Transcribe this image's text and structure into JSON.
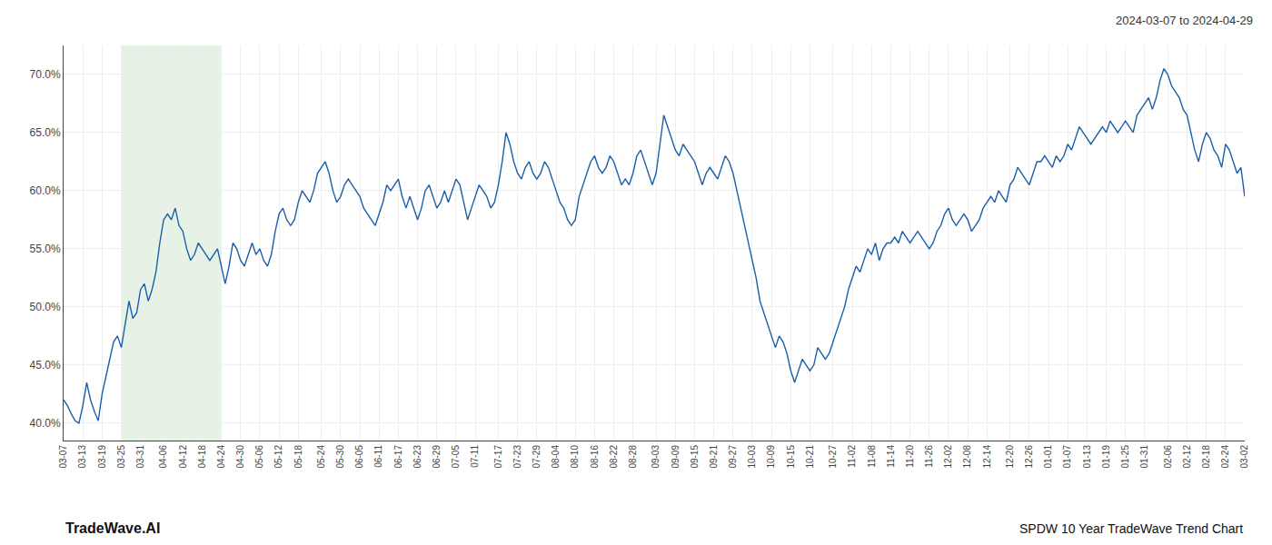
{
  "chart_data": {
    "type": "line",
    "title": "2024-03-07 to 2024-04-29",
    "annotations": [
      "TradeWave.AI",
      "SPDW 10 Year TradeWave Trend Chart"
    ],
    "color": "#1a5fa8",
    "grid": true,
    "ylim": [
      38.5,
      72.5
    ],
    "yticks": [
      {
        "value": 40.0,
        "label": "40.0%"
      },
      {
        "value": 45.0,
        "label": "45.0%"
      },
      {
        "value": 50.0,
        "label": "50.0%"
      },
      {
        "value": 55.0,
        "label": "55.0%"
      },
      {
        "value": 60.0,
        "label": "60.0%"
      },
      {
        "value": 65.0,
        "label": "65.0%"
      },
      {
        "value": 70.0,
        "label": "70.0%"
      }
    ],
    "shaded_range": {
      "start": "03-25",
      "end": "04-24",
      "color": "#d6ead6"
    },
    "categories": [
      "03-07",
      null,
      null,
      null,
      null,
      "03-13",
      null,
      null,
      null,
      null,
      "03-19",
      null,
      null,
      null,
      null,
      "03-25",
      null,
      null,
      null,
      null,
      "03-31",
      null,
      null,
      null,
      null,
      null,
      "04-06",
      null,
      null,
      null,
      null,
      "04-12",
      null,
      null,
      null,
      null,
      "04-18",
      null,
      null,
      null,
      null,
      "04-24",
      null,
      null,
      null,
      null,
      "04-30",
      null,
      null,
      null,
      null,
      "05-06",
      null,
      null,
      null,
      null,
      "05-12",
      null,
      null,
      null,
      null,
      "05-18",
      null,
      null,
      null,
      null,
      null,
      "05-24",
      null,
      null,
      null,
      null,
      "05-30",
      null,
      null,
      null,
      null,
      "06-05",
      null,
      null,
      null,
      null,
      "06-11",
      null,
      null,
      null,
      null,
      "06-17",
      null,
      null,
      null,
      null,
      "06-23",
      null,
      null,
      null,
      null,
      "06-29",
      null,
      null,
      null,
      null,
      "07-05",
      null,
      null,
      null,
      null,
      "07-11",
      null,
      null,
      null,
      null,
      null,
      "07-17",
      null,
      null,
      null,
      null,
      "07-23",
      null,
      null,
      null,
      null,
      "07-29",
      null,
      null,
      null,
      null,
      "08-04",
      null,
      null,
      null,
      null,
      "08-10",
      null,
      null,
      null,
      null,
      "08-16",
      null,
      null,
      null,
      null,
      "08-22",
      null,
      null,
      null,
      null,
      "08-28",
      null,
      null,
      null,
      null,
      null,
      "09-03",
      null,
      null,
      null,
      null,
      "09-09",
      null,
      null,
      null,
      null,
      "09-15",
      null,
      null,
      null,
      null,
      "09-21",
      null,
      null,
      null,
      null,
      "09-27",
      null,
      null,
      null,
      null,
      "10-03",
      null,
      null,
      null,
      null,
      "10-09",
      null,
      null,
      null,
      null,
      "10-15",
      null,
      null,
      null,
      null,
      "10-21",
      null,
      null,
      null,
      null,
      null,
      "10-27",
      null,
      null,
      null,
      null,
      "11-02",
      null,
      null,
      null,
      null,
      "11-08",
      null,
      null,
      null,
      null,
      "11-14",
      null,
      null,
      null,
      null,
      "11-20",
      null,
      null,
      null,
      null,
      "11-26",
      null,
      null,
      null,
      null,
      "12-02",
      null,
      null,
      null,
      null,
      "12-08",
      null,
      null,
      null,
      null,
      "12-14",
      null,
      null,
      null,
      null,
      null,
      "12-20",
      null,
      null,
      null,
      null,
      "12-26",
      null,
      null,
      null,
      null,
      "01-01",
      null,
      null,
      null,
      null,
      "01-07",
      null,
      null,
      null,
      null,
      "01-13",
      null,
      null,
      null,
      null,
      "01-19",
      null,
      null,
      null,
      null,
      "01-25",
      null,
      null,
      null,
      null,
      "01-31",
      null,
      null,
      null,
      null,
      null,
      "02-06",
      null,
      null,
      null,
      null,
      "02-12",
      null,
      null,
      null,
      null,
      "02-18",
      null,
      null,
      null,
      null,
      "02-24",
      null,
      null,
      null,
      null,
      "03-02"
    ],
    "values": [
      42.0,
      41.5,
      40.8,
      40.2,
      40.0,
      41.5,
      43.5,
      42.0,
      41.0,
      40.2,
      42.5,
      44.0,
      45.5,
      47.0,
      47.5,
      46.5,
      48.5,
      50.5,
      49.0,
      49.5,
      51.5,
      52.0,
      50.5,
      51.5,
      53.0,
      55.5,
      57.5,
      58.0,
      57.5,
      58.5,
      57.0,
      56.5,
      55.0,
      54.0,
      54.5,
      55.5,
      55.0,
      54.5,
      54.0,
      54.5,
      55.0,
      53.5,
      52.0,
      53.5,
      55.5,
      55.0,
      54.0,
      53.5,
      54.5,
      55.5,
      54.5,
      55.0,
      54.0,
      53.5,
      54.5,
      56.5,
      58.0,
      58.5,
      57.5,
      57.0,
      57.5,
      59.0,
      60.0,
      59.5,
      59.0,
      60.0,
      61.5,
      62.0,
      62.5,
      61.5,
      60.0,
      59.0,
      59.5,
      60.5,
      61.0,
      60.5,
      60.0,
      59.5,
      58.5,
      58.0,
      57.5,
      57.0,
      58.0,
      59.0,
      60.5,
      60.0,
      60.5,
      61.0,
      59.5,
      58.5,
      59.5,
      58.5,
      57.5,
      58.5,
      60.0,
      60.5,
      59.5,
      58.5,
      59.0,
      60.0,
      59.0,
      60.0,
      61.0,
      60.5,
      59.0,
      57.5,
      58.5,
      59.5,
      60.5,
      60.0,
      59.5,
      58.5,
      59.0,
      60.5,
      62.5,
      65.0,
      64.0,
      62.5,
      61.5,
      61.0,
      62.0,
      62.5,
      61.5,
      61.0,
      61.5,
      62.5,
      62.0,
      61.0,
      60.0,
      59.0,
      58.5,
      57.5,
      57.0,
      57.5,
      59.5,
      60.5,
      61.5,
      62.5,
      63.0,
      62.0,
      61.5,
      62.0,
      63.0,
      62.5,
      61.5,
      60.5,
      61.0,
      60.5,
      61.5,
      63.0,
      63.5,
      62.5,
      61.5,
      60.5,
      61.5,
      64.0,
      66.5,
      65.5,
      64.5,
      63.5,
      63.0,
      64.0,
      63.5,
      63.0,
      62.5,
      61.5,
      60.5,
      61.5,
      62.0,
      61.5,
      61.0,
      62.0,
      63.0,
      62.5,
      61.5,
      60.0,
      58.5,
      57.0,
      55.5,
      54.0,
      52.5,
      50.5,
      49.5,
      48.5,
      47.5,
      46.5,
      47.5,
      47.0,
      46.0,
      44.5,
      43.5,
      44.5,
      45.5,
      45.0,
      44.5,
      45.0,
      46.5,
      46.0,
      45.5,
      46.0,
      47.0,
      48.0,
      49.0,
      50.0,
      51.5,
      52.5,
      53.5,
      53.0,
      54.0,
      55.0,
      54.5,
      55.5,
      54.0,
      55.0,
      55.5,
      55.5,
      56.0,
      55.5,
      56.5,
      56.0,
      55.5,
      56.0,
      56.5,
      56.0,
      55.5,
      55.0,
      55.5,
      56.5,
      57.0,
      58.0,
      58.5,
      57.5,
      57.0,
      57.5,
      58.0,
      57.5,
      56.5,
      57.0,
      57.5,
      58.5,
      59.0,
      59.5,
      59.0,
      60.0,
      59.5,
      59.0,
      60.5,
      61.0,
      62.0,
      61.5,
      61.0,
      60.5,
      61.5,
      62.5,
      62.5,
      63.0,
      62.5,
      62.0,
      63.0,
      62.5,
      63.0,
      64.0,
      63.5,
      64.5,
      65.5,
      65.0,
      64.5,
      64.0,
      64.5,
      65.0,
      65.5,
      65.0,
      66.0,
      65.5,
      65.0,
      65.5,
      66.0,
      65.5,
      65.0,
      66.5,
      67.0,
      67.5,
      68.0,
      67.0,
      68.0,
      69.5,
      70.5,
      70.0,
      69.0,
      68.5,
      68.0,
      67.0,
      66.5,
      65.0,
      63.5,
      62.5,
      64.0,
      65.0,
      64.5,
      63.5,
      63.0,
      62.0,
      64.0,
      63.5,
      62.5,
      61.5,
      62.0,
      59.5
    ]
  }
}
